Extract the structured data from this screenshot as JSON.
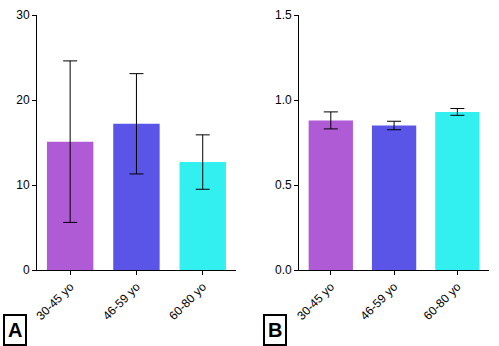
{
  "chart_data": [
    {
      "type": "bar",
      "categories": [
        "30-45 yo",
        "46-59 yo",
        "60-80 yo"
      ],
      "values": [
        15.1,
        17.2,
        12.7
      ],
      "errors": [
        9.5,
        5.9,
        3.2
      ],
      "colors": [
        "#b05bd6",
        "#5a55e6",
        "#33f0f0"
      ],
      "ylim": [
        0,
        30
      ],
      "yticks": [
        0,
        10,
        20,
        30
      ],
      "grid": false,
      "annotations": [
        "A"
      ]
    },
    {
      "type": "bar",
      "categories": [
        "30-45 yo",
        "46-59 yo",
        "60-80 yo"
      ],
      "values": [
        0.88,
        0.85,
        0.93
      ],
      "errors": [
        0.05,
        0.025,
        0.02
      ],
      "colors": [
        "#b05bd6",
        "#5a55e6",
        "#33f0f0"
      ],
      "ylim": [
        0,
        1.5
      ],
      "yticks": [
        {
          "value": 0,
          "label": "0.0"
        },
        {
          "value": 0.5,
          "label": "0.5"
        },
        {
          "value": 1,
          "label": "1.0"
        },
        {
          "value": 1.5,
          "label": "1.5"
        }
      ],
      "grid": false,
      "annotations": [
        "B"
      ]
    }
  ]
}
